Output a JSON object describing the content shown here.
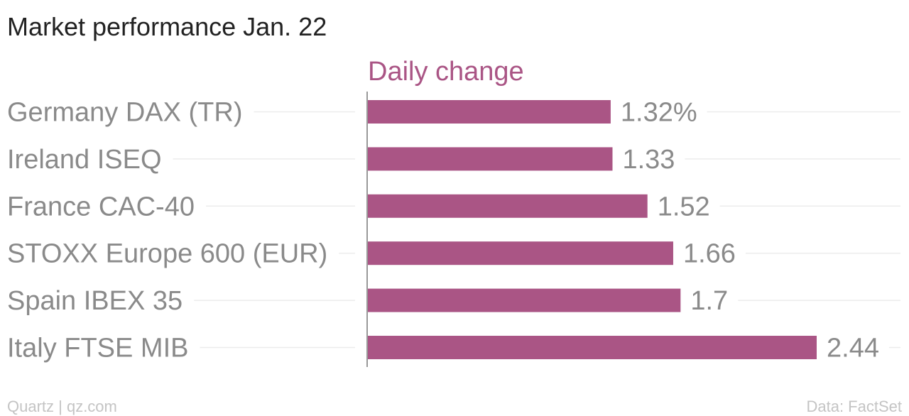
{
  "chart_data": {
    "type": "bar",
    "orientation": "horizontal",
    "title": "Market performance Jan. 22",
    "series_label": "Daily change",
    "categories": [
      "Germany DAX (TR)",
      "Ireland ISEQ",
      "France CAC-40",
      "STOXX Europe 600 (EUR)",
      "Spain IBEX 35",
      "Italy FTSE MIB"
    ],
    "values": [
      1.32,
      1.33,
      1.52,
      1.66,
      1.7,
      2.44
    ],
    "value_labels": [
      "1.32%",
      "1.33",
      "1.52",
      "1.66",
      "1.7",
      "2.44"
    ],
    "xlim": [
      0,
      2.44
    ],
    "grid": true,
    "bar_color": "#aa5585",
    "series_label_color": "#aa5585",
    "footer_left": "Quartz | qz.com",
    "footer_right": "Data: FactSet"
  }
}
